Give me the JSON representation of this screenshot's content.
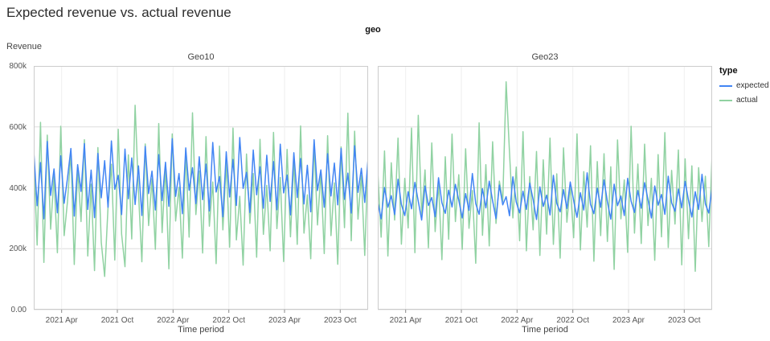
{
  "title": "Expected revenue vs. actual revenue",
  "chart_data": {
    "type": "line",
    "facet_field": "geo",
    "xlabel": "Time period",
    "ylabel": "Revenue",
    "values_unit": "thousands",
    "ylim": [
      0,
      800
    ],
    "x_range": [
      "2021-01",
      "2024-01"
    ],
    "grid": true,
    "legend_position": "right",
    "yticks": [
      {
        "label": "0.00",
        "value": 0
      },
      {
        "label": "200k",
        "value": 200
      },
      {
        "label": "400k",
        "value": 400
      },
      {
        "label": "600k",
        "value": 600
      },
      {
        "label": "800k",
        "value": 800
      }
    ],
    "xticks": [
      {
        "label": "2021 Apr",
        "pos": 0.0833
      },
      {
        "label": "2021 Oct",
        "pos": 0.25
      },
      {
        "label": "2022 Apr",
        "pos": 0.4167
      },
      {
        "label": "2022 Oct",
        "pos": 0.5833
      },
      {
        "label": "2023 Apr",
        "pos": 0.75
      },
      {
        "label": "2023 Oct",
        "pos": 0.9167
      }
    ],
    "colors": {
      "expected": "#4285f4",
      "actual": "#90d2a2"
    },
    "legend": {
      "title": "type",
      "items": [
        "expected",
        "actual"
      ]
    },
    "facets": [
      {
        "title": "Geo10",
        "series": [
          {
            "name": "expected",
            "values": [
              520,
              341,
              483,
              298,
              552,
              375,
              462,
              318,
              505,
              349,
              432,
              529,
              307,
              476,
              388,
              545,
              329,
              458,
              302,
              513,
              367,
              489,
              336,
              554,
              395,
              441,
              312,
              527,
              364,
              498,
              345,
              472,
              309,
              536,
              381,
              455,
              327,
              509,
              358,
              484,
              339,
              561,
              372,
              447,
              315,
              531,
              392,
              466,
              348,
              502,
              361,
              478,
              324,
              549,
              386,
              437,
              305,
              518,
              370,
              493,
              342,
              565,
              398,
              451,
              319,
              524,
              377,
              469,
              333,
              507,
              355,
              486,
              328,
              543,
              383,
              442,
              311,
              515,
              368,
              496,
              347,
              474,
              321,
              558,
              391,
              459,
              336,
              512,
              373,
              481,
              344,
              529,
              362,
              448,
              317,
              538,
              385,
              464,
              352,
              498
            ]
          },
          {
            "name": "actual",
            "values": [
              498,
              212,
              615,
              155,
              573,
              264,
              438,
              187,
              602,
              243,
              356,
              518,
              148,
              467,
              289,
              558,
              176,
              412,
              128,
              532,
              221,
              109,
              336,
              477,
              163,
              592,
              248,
              141,
              508,
              232,
              671,
              385,
              157,
              544,
              276,
              429,
              198,
              611,
              253,
              468,
              134,
              577,
              291,
              402,
              169,
              523,
              238,
              646,
              312,
              455,
              186,
              568,
              274,
              419,
              151,
              537,
              262,
              483,
              205,
              596,
              229,
              372,
              146,
              511,
              283,
              447,
              172,
              559,
              247,
              408,
              193,
              582,
              266,
              434,
              158,
              526,
              239,
              491,
              214,
              603,
              251,
              377,
              167,
              548,
              278,
              452,
              184,
              571,
              243,
              416,
              149,
              534,
              269,
              645,
              226,
              586,
              297,
              441,
              178,
              503
            ]
          }
        ]
      },
      {
        "title": "Geo23",
        "series": [
          {
            "name": "expected",
            "values": [
              352,
              298,
              401,
              336,
              374,
              312,
              428,
              345,
              309,
              387,
              331,
              418,
              356,
              294,
              406,
              342,
              368,
              305,
              433,
              351,
              316,
              392,
              337,
              411,
              359,
              301,
              381,
              326,
              447,
              348,
              313,
              397,
              334,
              422,
              357,
              299,
              409,
              344,
              371,
              308,
              436,
              353,
              318,
              389,
              329,
              415,
              361,
              296,
              403,
              339,
              376,
              311,
              441,
              349,
              321,
              394,
              332,
              419,
              358,
              303,
              384,
              327,
              449,
              346,
              315,
              399,
              336,
              426,
              354,
              297,
              412,
              341,
              373,
              309,
              431,
              356,
              319,
              391,
              333,
              417,
              362,
              301,
              406,
              343,
              378,
              313,
              438,
              351,
              323,
              396,
              334,
              421,
              359,
              304,
              387,
              329,
              444,
              347,
              317,
              401
            ]
          },
          {
            "name": "actual",
            "values": [
              455,
              238,
              521,
              176,
              482,
              294,
              563,
              215,
              431,
              268,
              596,
              187,
              638,
              312,
              459,
              203,
              547,
              256,
              418,
              164,
              502,
              231,
              576,
              289,
              443,
              198,
              528,
              267,
              391,
              152,
              613,
              244,
              476,
              209,
              551,
              283,
              422,
              356,
              748,
              516,
              301,
              468,
              226,
              584,
              193,
              437,
              262,
              519,
              178,
              492,
              248,
              563,
              214,
              446,
              169,
              531,
              287,
              409,
              236,
              577,
              196,
              453,
              271,
              538,
              159,
              486,
              243,
              512,
              224,
              469,
              132,
              557,
              298,
              426,
              188,
              602,
              251,
              478,
              217,
              543,
              276,
              431,
              162,
              509,
              239,
              581,
              204,
              457,
              281,
              524,
              147,
              495,
              233,
              472,
              126,
              466,
              289,
              438,
              207,
              512
            ]
          }
        ]
      }
    ]
  }
}
